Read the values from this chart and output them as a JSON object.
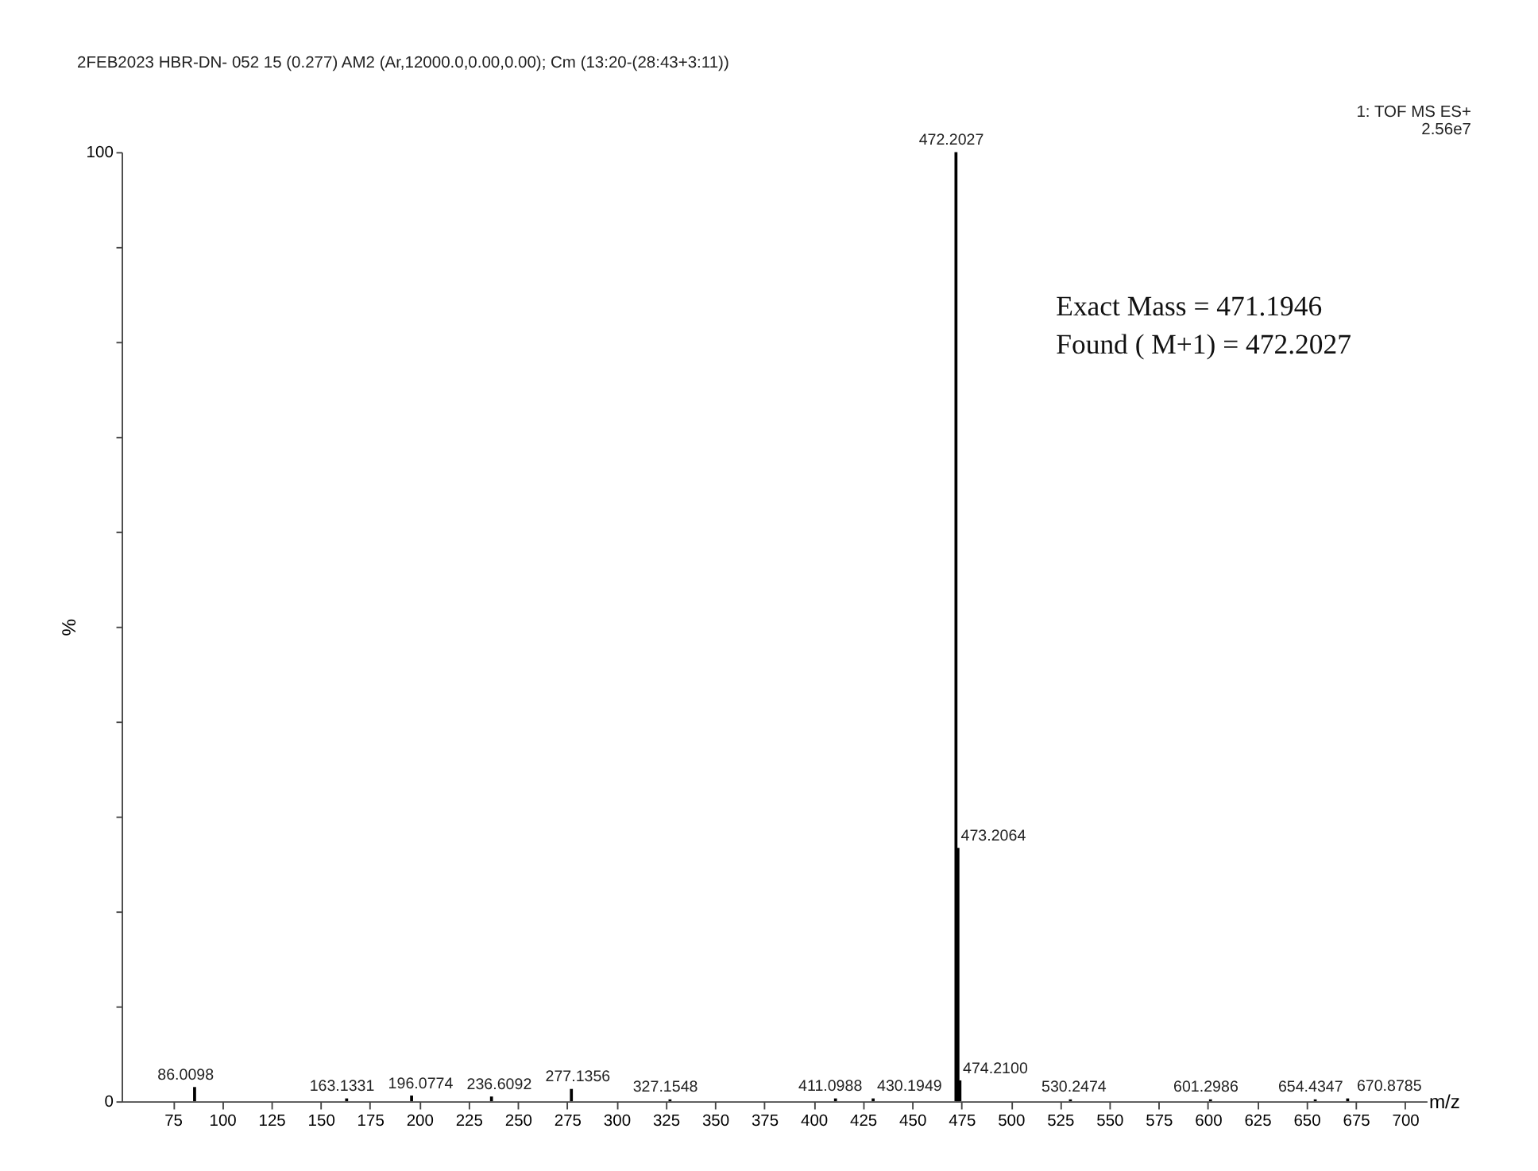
{
  "chart_data": {
    "type": "bar",
    "title": "2FEB2023  HBR-DN- 052 15 (0.277) AM2 (Ar,12000.0,0.00,0.00); Cm (13:20-(28:43+3:11))",
    "xlabel": "m/z",
    "ylabel": "%",
    "x": [
      86.0098,
      163.1331,
      196.0774,
      236.6092,
      277.1356,
      327.1548,
      411.0988,
      430.1949,
      472.2027,
      473.2064,
      474.21,
      530.2474,
      601.2986,
      654.4347,
      670.8785
    ],
    "values": [
      1.5,
      0.3,
      0.6,
      0.5,
      1.3,
      0.2,
      0.3,
      0.3,
      100,
      26.7,
      2.2,
      0.2,
      0.2,
      0.2,
      0.3
    ],
    "color": "#000000",
    "xlim": [
      49,
      711
    ],
    "ylim": [
      0,
      100
    ],
    "xticks": [
      75,
      100,
      125,
      150,
      175,
      200,
      225,
      250,
      275,
      300,
      325,
      350,
      375,
      400,
      425,
      450,
      475,
      500,
      525,
      550,
      575,
      600,
      625,
      650,
      675,
      700
    ],
    "yticks": [
      0,
      {
        "value": 10,
        "label": null
      },
      {
        "value": 20,
        "label": null
      },
      {
        "value": 30,
        "label": null
      },
      {
        "value": 40,
        "label": null
      },
      {
        "value": 50,
        "label": null
      },
      {
        "value": 60,
        "label": null
      },
      {
        "value": 70,
        "label": null
      },
      {
        "value": 80,
        "label": null
      },
      {
        "value": 90,
        "label": null
      },
      100
    ],
    "grid": false,
    "annotations": [
      "1: TOF MS ES+",
      "2.56e7",
      "Exact Mass = 471.1946",
      "Found ( M+1) = 472.2027",
      {
        "text": "86.0098",
        "x": 86.0098,
        "y": 1.5
      },
      {
        "text": "163.1331",
        "x": 163.1331,
        "y": 0.3
      },
      {
        "text": "196.0774",
        "x": 196.0774,
        "y": 0.6
      },
      {
        "text": "236.6092",
        "x": 236.6092,
        "y": 0.5
      },
      {
        "text": "277.1356",
        "x": 277.1356,
        "y": 1.3
      },
      {
        "text": "327.1548",
        "x": 327.1548,
        "y": 0.2
      },
      {
        "text": "411.0988",
        "x": 411.0988,
        "y": 0.3
      },
      {
        "text": "430.1949",
        "x": 430.1949,
        "y": 0.3
      },
      {
        "text": "472.2027",
        "x": 472.2027,
        "y": 100
      },
      {
        "text": "473.2064",
        "x": 473.2064,
        "y": 26.7
      },
      {
        "text": "474.2100",
        "x": 474.21,
        "y": 2.2
      },
      {
        "text": "530.2474",
        "x": 530.2474,
        "y": 0.2
      },
      {
        "text": "601.2986",
        "x": 601.2986,
        "y": 0.2
      },
      {
        "text": "654.4347",
        "x": 654.4347,
        "y": 0.2
      },
      {
        "text": "670.8785",
        "x": 670.8785,
        "y": 0.3
      }
    ]
  }
}
